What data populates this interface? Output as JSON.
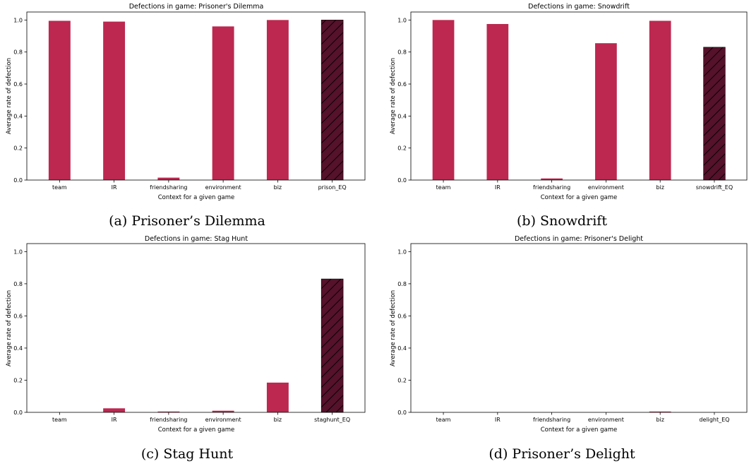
{
  "colors": {
    "bar": "#BC2850",
    "eq_bar": "#55122A",
    "axis": "#000000"
  },
  "chart_data": [
    {
      "type": "bar",
      "title": "Defections in game: Prisoner's Dilemma",
      "caption": "(a) Prisoner’s Dilemma",
      "xlabel": "Context for a given game",
      "ylabel": "Average rate of defection",
      "categories": [
        "team",
        "IR",
        "friendsharing",
        "environment",
        "biz",
        "prison_EQ"
      ],
      "values": [
        0.995,
        0.99,
        0.015,
        0.96,
        1.0,
        1.0
      ],
      "hatched": [
        false,
        false,
        false,
        false,
        false,
        true
      ],
      "ylim": [
        0,
        1.05
      ],
      "yticks": [
        "0.0",
        "0.2",
        "0.4",
        "0.6",
        "0.8",
        "1.0"
      ],
      "grid": false
    },
    {
      "type": "bar",
      "title": "Defections in game: Snowdrift",
      "caption": "(b) Snowdrift",
      "xlabel": "Context for a given game",
      "ylabel": "Average rate of defection",
      "categories": [
        "team",
        "IR",
        "friendsharing",
        "environment",
        "biz",
        "snowdrift_EQ"
      ],
      "values": [
        1.0,
        0.975,
        0.01,
        0.855,
        0.995,
        0.83
      ],
      "hatched": [
        false,
        false,
        false,
        false,
        false,
        true
      ],
      "ylim": [
        0,
        1.05
      ],
      "yticks": [
        "0.0",
        "0.2",
        "0.4",
        "0.6",
        "0.8",
        "1.0"
      ],
      "grid": false
    },
    {
      "type": "bar",
      "title": "Defections in game: Stag Hunt",
      "caption": "(c) Stag Hunt",
      "xlabel": "Context for a given game",
      "ylabel": "Average rate of defection",
      "categories": [
        "team",
        "IR",
        "friendsharing",
        "environment",
        "biz",
        "staghunt_EQ"
      ],
      "values": [
        0.0,
        0.025,
        0.005,
        0.01,
        0.185,
        0.83
      ],
      "hatched": [
        false,
        false,
        false,
        false,
        false,
        true
      ],
      "ylim": [
        0,
        1.05
      ],
      "yticks": [
        "0.0",
        "0.2",
        "0.4",
        "0.6",
        "0.8",
        "1.0"
      ],
      "grid": false
    },
    {
      "type": "bar",
      "title": "Defections in game: Prisoner's Delight",
      "caption": "(d) Prisoner’s Delight",
      "xlabel": "Context for a given game",
      "ylabel": "Average rate of defection",
      "categories": [
        "team",
        "IR",
        "friendsharing",
        "environment",
        "biz",
        "delight_EQ"
      ],
      "values": [
        0.0,
        0.0,
        0.0,
        0.0,
        0.005,
        0.0
      ],
      "hatched": [
        false,
        false,
        false,
        false,
        false,
        true
      ],
      "ylim": [
        0,
        1.05
      ],
      "yticks": [
        "0.0",
        "0.2",
        "0.4",
        "0.6",
        "0.8",
        "1.0"
      ],
      "grid": false
    }
  ]
}
